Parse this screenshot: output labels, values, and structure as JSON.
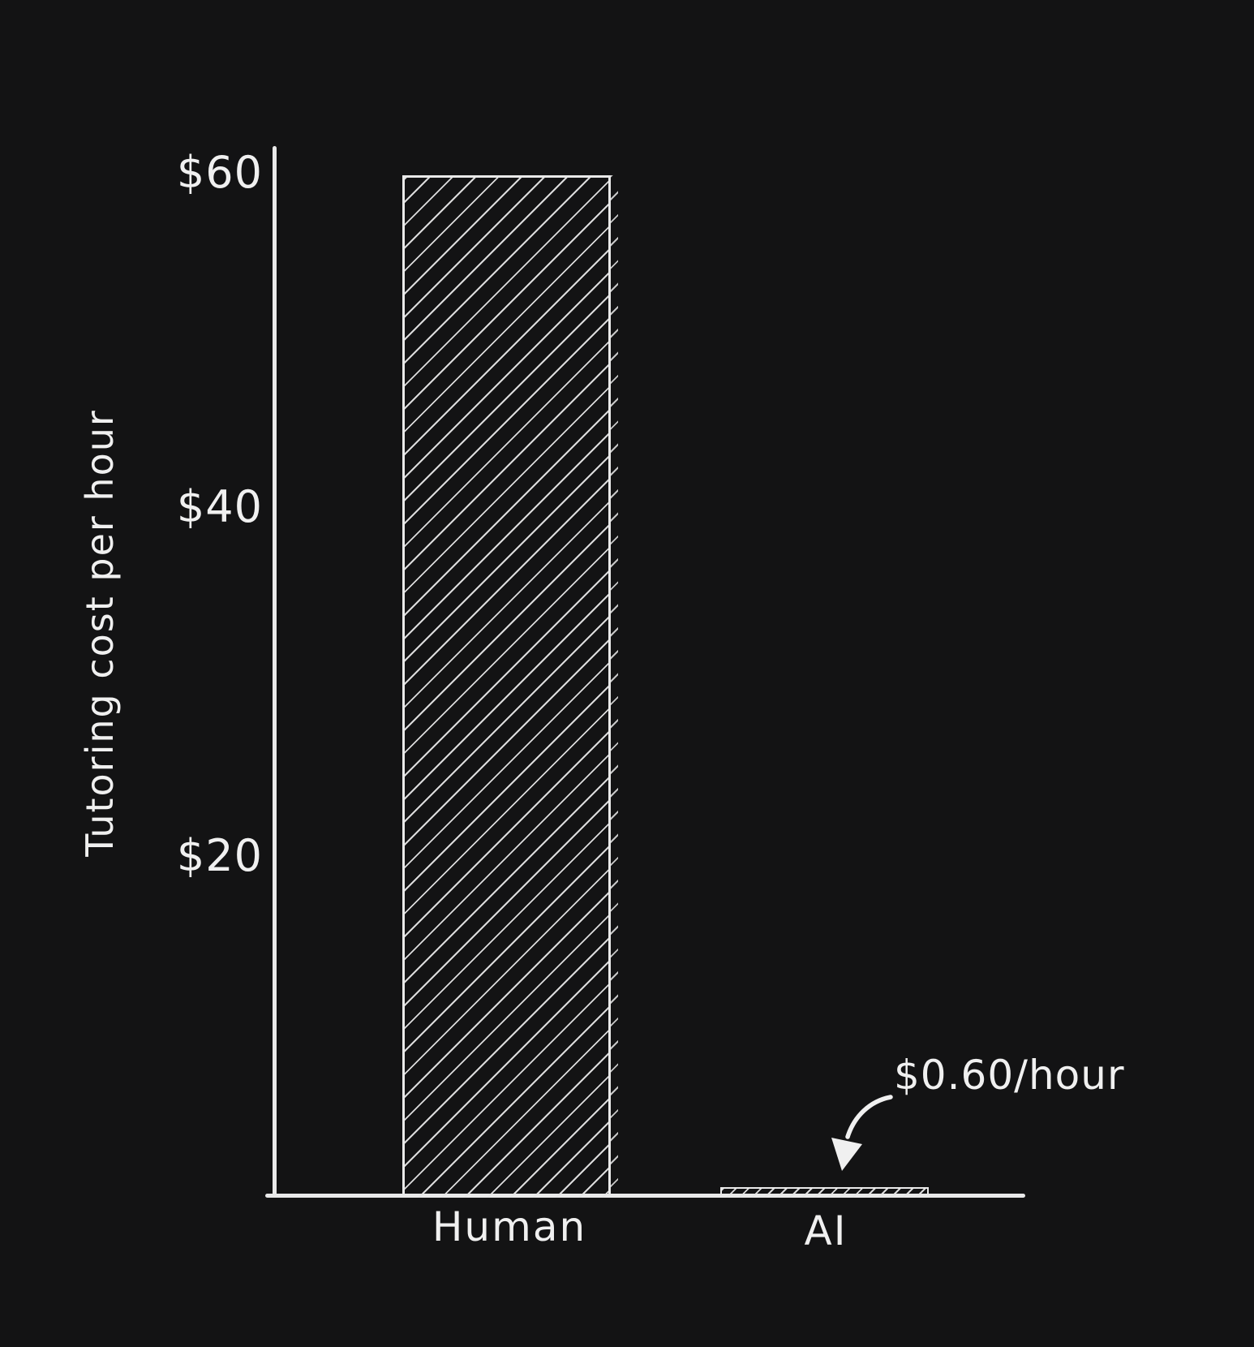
{
  "chart_data": {
    "type": "bar",
    "title": "",
    "categories": [
      "Human",
      "AI"
    ],
    "values": [
      60,
      0.6
    ],
    "xlabel": "",
    "ylabel": "Tutoring cost per hour",
    "ytick_labels": [
      "$60",
      "$40",
      "$20"
    ],
    "ytick_values": [
      60,
      40,
      20
    ],
    "ylim": [
      0,
      62
    ],
    "grid": false,
    "legend": false,
    "bar_fill": "diagonal-hatch",
    "annotation": {
      "text": "$0.60/hour",
      "target_category": "AI",
      "arrow": "curved-down-left"
    },
    "colors": {
      "background": "#131314",
      "ink": "#f0f0f0",
      "axis": "#e9e9e9"
    },
    "style": "hand-drawn xkcd-like sketch, white ink on near-black background"
  }
}
